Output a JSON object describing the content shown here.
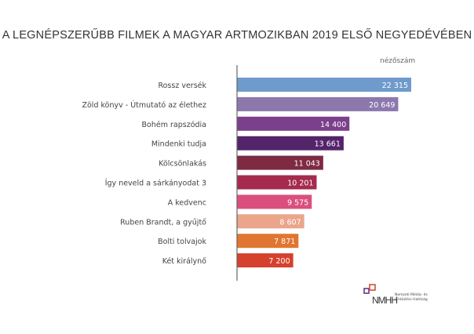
{
  "chart_data": {
    "type": "bar",
    "orientation": "horizontal",
    "title": "A LEGNÉPSZERŰBB FILMEK A MAGYAR ARTMOZIKBAN 2019 ELSŐ NEGYEDÉVÉBEN",
    "unit_label": "nézőszám",
    "categories": [
      "Rossz versék",
      "Zöld könyv - Útmutató az élethez",
      "Bohém rapszódia",
      "Mindenki tudja",
      "Kölcsönlakás",
      "Így neveld a sárkányodat 3",
      "A kedvenc",
      "Ruben Brandt, a gyűjtő",
      "Bolti tolvajok",
      "Két királynő"
    ],
    "values": [
      22315,
      20649,
      14400,
      13661,
      11043,
      10201,
      9575,
      8607,
      7871,
      7200
    ],
    "value_labels": [
      "22 315",
      "20 649",
      "14 400",
      "13 661",
      "11 043",
      "10 201",
      "9 575",
      "8 607",
      "7 871",
      "7 200"
    ],
    "colors": [
      "#6f9bcc",
      "#8c78ad",
      "#7b3f8c",
      "#54246b",
      "#7e2a43",
      "#a52a4e",
      "#d9507f",
      "#eaa58a",
      "#e07631",
      "#d5412c"
    ],
    "xlim": [
      0,
      22315
    ],
    "grid": false,
    "legend": "none"
  },
  "logo": {
    "text": "NMHH",
    "caption": "Nemzeti Média- és Hírközlési Hatóság"
  }
}
